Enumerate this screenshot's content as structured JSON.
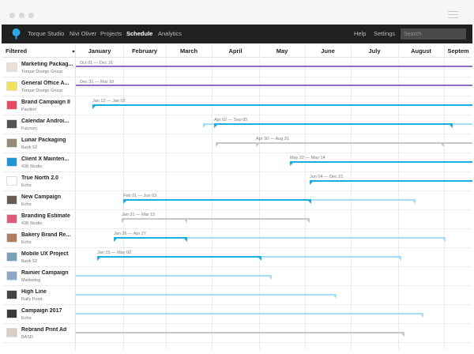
{
  "window": {
    "title_bar": {
      "dots": 3
    },
    "menu_icon": "hamburger-icon"
  },
  "nav": {
    "logo": "balloon-logo",
    "items": [
      {
        "label": "Torque Studio",
        "active": false
      },
      {
        "label": "Nivi Oliver",
        "active": false
      },
      {
        "label": "Projects",
        "active": false
      },
      {
        "label": "Schedule",
        "active": true
      },
      {
        "label": "Analytics",
        "active": false
      }
    ],
    "right_items": [
      {
        "label": "Help"
      },
      {
        "label": "Settings"
      }
    ],
    "search": {
      "placeholder": "Search",
      "value": ""
    }
  },
  "schedule": {
    "filter_label": "Filtered",
    "months": [
      "January",
      "February",
      "March",
      "April",
      "May",
      "June",
      "July",
      "August",
      "Septem"
    ],
    "colors": {
      "blue": "#1aaee0",
      "light_blue": "#a6def5",
      "purple": "#8e6fc6",
      "gray": "#c8c8c8"
    },
    "projects": [
      {
        "name": "Marketing Packag...",
        "client": "Torque Design Group",
        "thumb": "#e8e2d6",
        "date_label": "Oct 01 — Dec 31",
        "primary_color": "#8e6fc6"
      },
      {
        "name": "General Office A...",
        "client": "Torque Design Group",
        "thumb": "#f2e25a",
        "date_label": "Dec 31 — Mar 18",
        "primary_color": "#8e6fc6"
      },
      {
        "name": "Brand Campaign II",
        "client": "Pavilion",
        "thumb": "#e84a5f",
        "date_label": "Jan 12 — Jan 02",
        "primary_color": "#1aaee0"
      },
      {
        "name": "Calendar Androi...",
        "client": "Fulcrum",
        "thumb": "#555555",
        "date_label": "Apr 02 — Sep 05",
        "primary_color": "#1aaee0"
      },
      {
        "name": "Lunar Packaging",
        "client": "Bank 52",
        "thumb": "#9a8a7a",
        "date_label": "Apr 30 — Aug 31",
        "primary_color": "#c8c8c8"
      },
      {
        "name": "Client X Mainten...",
        "client": "438 Studio",
        "thumb": "#1f96d6",
        "date_label": "May 22 — May 14",
        "primary_color": "#1aaee0"
      },
      {
        "name": "True North 2.0",
        "client": "Echo",
        "thumb": "#ffffff",
        "date_label": "Jun 04 — Dec 21",
        "primary_color": "#1aaee0"
      },
      {
        "name": "New Campaign",
        "client": "Echo",
        "thumb": "#6c5b4f",
        "date_label": "Feb 01 — Jun 03",
        "primary_color": "#1aaee0"
      },
      {
        "name": "Branding Estimate",
        "client": "438 Studio",
        "thumb": "#e05a7a",
        "date_label": "Jan 31 — Mar 15",
        "primary_color": "#c8c8c8"
      },
      {
        "name": "Bakery Brand Re...",
        "client": "Echo",
        "thumb": "#b07d62",
        "date_label": "Jan 26 — Apr 27",
        "primary_color": "#1aaee0"
      },
      {
        "name": "Mobile UX Project",
        "client": "Bank 52",
        "thumb": "#7aa0b8",
        "date_label": "Jan 15 — May 02",
        "primary_color": "#1aaee0"
      },
      {
        "name": "Rainier Campaign",
        "client": "Marketing",
        "thumb": "#8fa8c8",
        "date_label": "",
        "primary_color": ""
      },
      {
        "name": "High Line",
        "client": "Rally Point",
        "thumb": "#444444",
        "date_label": "",
        "primary_color": ""
      },
      {
        "name": "Campaign 2017",
        "client": "Echo",
        "thumb": "#3a3a3a",
        "date_label": "",
        "primary_color": ""
      },
      {
        "name": "Rebrand Print Ad",
        "client": "BASD",
        "thumb": "#d9cfc2",
        "date_label": "",
        "primary_color": ""
      }
    ]
  }
}
